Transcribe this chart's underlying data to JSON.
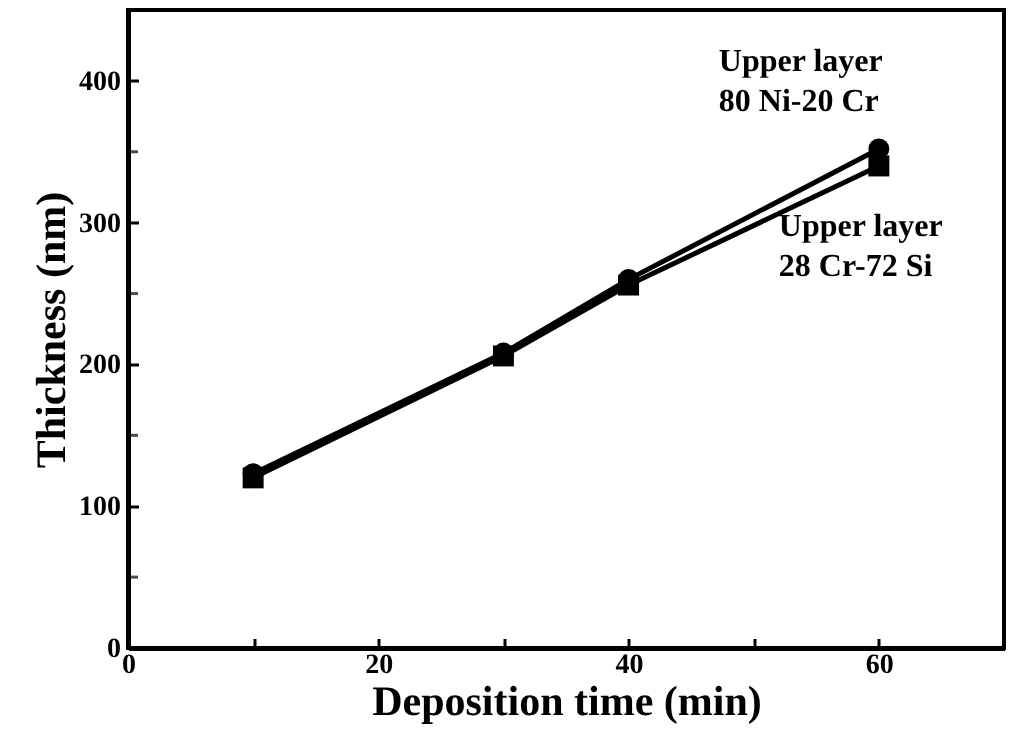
{
  "chart_data": {
    "type": "line",
    "xlabel": "Deposition time (min)",
    "ylabel": "Thickness (nm)",
    "xlim": [
      0,
      70
    ],
    "xticks": [
      0,
      {
        "value": 10,
        "label": null
      },
      20,
      {
        "value": 30,
        "label": null
      },
      40,
      {
        "value": 50,
        "label": null
      },
      60
    ],
    "ylim": [
      0,
      450
    ],
    "yticks": [
      0,
      {
        "value": 50,
        "label": null
      },
      100,
      {
        "value": 150,
        "label": null
      },
      200,
      {
        "value": 250,
        "label": null
      },
      300,
      {
        "value": 350,
        "label": null
      },
      400
    ],
    "grid": false,
    "line_style": "solid",
    "x": [
      10,
      30,
      40,
      60
    ],
    "series": [
      {
        "name": "Upper layer\n80 Ni-20 Cr",
        "color": "#000000",
        "marker": "circle",
        "values": [
          123,
          208,
          260,
          352
        ]
      },
      {
        "name": "Upper layer\n28 Cr-72 Si",
        "color": "#000000",
        "marker": "square",
        "values": [
          120,
          206,
          256,
          340
        ]
      }
    ]
  }
}
